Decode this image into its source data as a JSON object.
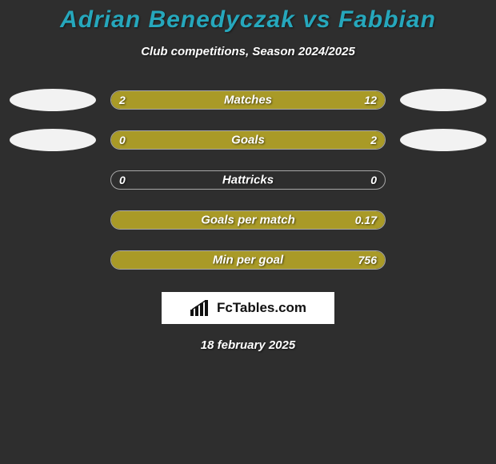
{
  "title": "Adrian Benedyczak vs Fabbian",
  "title_color": "#26a7bc",
  "subtitle": "Club competitions, Season 2024/2025",
  "bar_fill_color": "#a99a27",
  "bar_border_color": "#a8a8a8",
  "background_color": "#2e2e2e",
  "ellipse_color": "#f2f2f2",
  "rows": [
    {
      "label": "Matches",
      "left_val": "2",
      "right_val": "12",
      "left_pct": 14,
      "right_pct": 86,
      "show_ellipses": true
    },
    {
      "label": "Goals",
      "left_val": "0",
      "right_val": "2",
      "left_pct": 0,
      "right_pct": 100,
      "show_ellipses": true
    },
    {
      "label": "Hattricks",
      "left_val": "0",
      "right_val": "0",
      "left_pct": 0,
      "right_pct": 0,
      "show_ellipses": false
    },
    {
      "label": "Goals per match",
      "left_val": "",
      "right_val": "0.17",
      "left_pct": 0,
      "right_pct": 100,
      "show_ellipses": false
    },
    {
      "label": "Min per goal",
      "left_val": "",
      "right_val": "756",
      "left_pct": 0,
      "right_pct": 100,
      "show_ellipses": false
    }
  ],
  "logo_text": "FcTables.com",
  "date": "18 february 2025"
}
